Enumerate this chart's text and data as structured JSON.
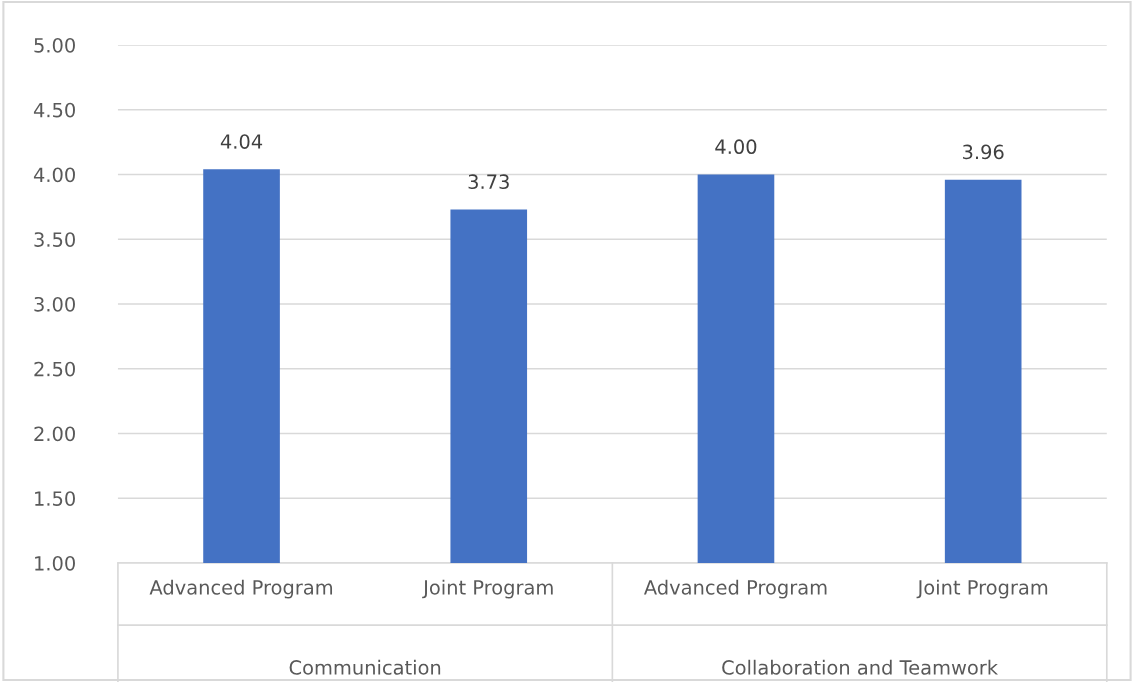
{
  "chart_data": {
    "type": "bar",
    "categories": [
      "Advanced Program",
      "Joint Program",
      "Advanced Program",
      "Joint Program"
    ],
    "values": [
      4.04,
      3.73,
      4.0,
      3.96
    ],
    "value_labels": [
      "4.04",
      "3.73",
      "4.00",
      "3.96"
    ],
    "color": "#4472c4",
    "ylim": [
      1,
      5
    ],
    "yticks": [
      {
        "value": 1,
        "label": "1.00"
      },
      {
        "value": 1.5,
        "label": "1.50"
      },
      {
        "value": 2,
        "label": "2.00"
      },
      {
        "value": 2.5,
        "label": "2.50"
      },
      {
        "value": 3,
        "label": "3.00"
      },
      {
        "value": 3.5,
        "label": "3.50"
      },
      {
        "value": 4,
        "label": "4.00"
      },
      {
        "value": 4.5,
        "label": "4.50"
      },
      {
        "value": 5,
        "label": "5.00"
      }
    ],
    "grid": "y",
    "legend": false,
    "annotations": [
      "Communication",
      "Collaboration and Teamwork"
    ]
  }
}
